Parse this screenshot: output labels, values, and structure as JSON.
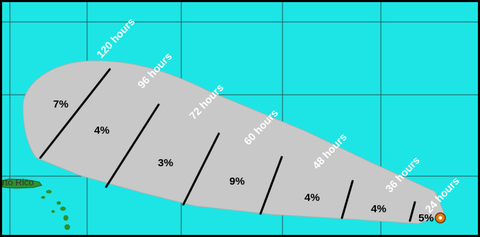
{
  "map": {
    "colors": {
      "ocean": "#1de5e5",
      "grid": "#2a2a2a",
      "cone_fill": "#c8c8c8",
      "divider": "#000000",
      "land": "#2f8f2f",
      "storm": "#e07a10",
      "hours_text": "#ffffff",
      "pct_text": "#000000"
    },
    "place_label": "rto Rico",
    "time_labels": [
      "24 hours",
      "36 hours",
      "48 hours",
      "60 hours",
      "72 hours",
      "96 hours",
      "120 hours"
    ],
    "segments": [
      {
        "period": "0-24 hours",
        "label": "5%"
      },
      {
        "period": "24-36 hours",
        "label": "4%"
      },
      {
        "period": "36-48 hours",
        "label": "4%"
      },
      {
        "period": "48-60 hours",
        "label": "9%"
      },
      {
        "period": "60-72 hours",
        "label": "3%"
      },
      {
        "period": "72-96 hours",
        "label": "4%"
      },
      {
        "period": "96-120 hours",
        "label": "7%"
      }
    ],
    "storm_icon": "tropical-disturbance-icon"
  }
}
